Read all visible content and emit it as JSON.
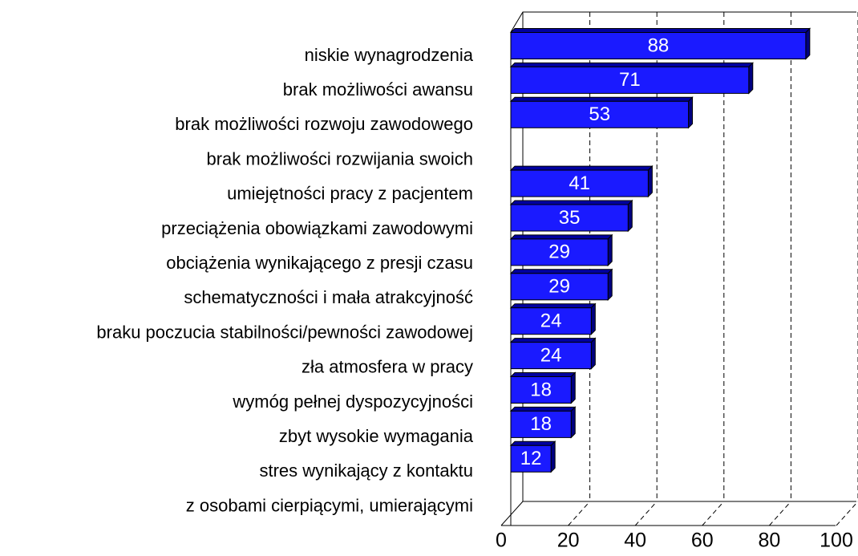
{
  "chart_data": {
    "type": "bar",
    "orientation": "horizontal",
    "categories": [
      [
        "niskie wynagrodzenia"
      ],
      [
        "brak możliwości awansu"
      ],
      [
        "brak możliwości rozwoju zawodowego"
      ],
      [
        "brak możliwości rozwijania swoich",
        "umiejętności pracy z pacjentem"
      ],
      [
        "przeciążenia obowiązkami zawodowymi"
      ],
      [
        "obciążenia wynikającego z presji czasu"
      ],
      [
        "schematyczności i mała atrakcyjność"
      ],
      [
        "braku poczucia stabilności/pewności zawodowej"
      ],
      [
        "zła atmosfera w pracy"
      ],
      [
        "wymóg pełnej dyspozycyjności"
      ],
      [
        "zbyt wysokie wymagania"
      ],
      [
        "stres wynikający z kontaktu",
        "z osobami cierpiącymi, umierającymi"
      ]
    ],
    "values": [
      88,
      71,
      53,
      41,
      35,
      29,
      29,
      24,
      24,
      18,
      18,
      12
    ],
    "color": "#1a1aff",
    "xlim": [
      0,
      100
    ],
    "xticks": [
      0,
      20,
      40,
      60,
      80,
      100
    ],
    "grid": true
  }
}
